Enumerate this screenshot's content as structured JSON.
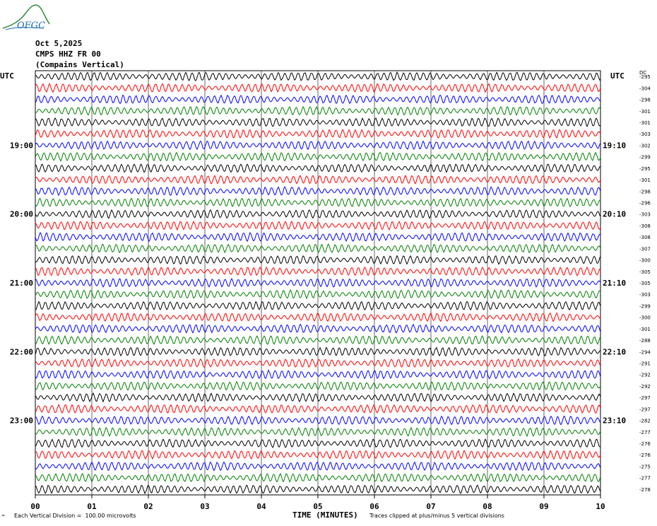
{
  "logo": {
    "text": "OFGC",
    "icon": "ofgc-logo-icon"
  },
  "header": {
    "date": "Oct 5,2025",
    "station": "CMPS HHZ FR 00",
    "location": "(Compains Vertical)"
  },
  "axis_labels": {
    "left_utc": "UTC",
    "right_utc": "UTC",
    "dc": "DC"
  },
  "footer": {
    "scale_note": "Each Vertical Division =  100.00 microvolts",
    "clip_note": "Traces clipped at plus/minus 5 vertical divisions"
  },
  "chart_data": {
    "type": "line",
    "title": "CMPS HHZ FR 00",
    "xlabel": "TIME (MINUTES)",
    "ylabel": "UTC",
    "xlim": [
      0,
      10
    ],
    "x_ticks": [
      "00",
      "01",
      "02",
      "03",
      "04",
      "05",
      "06",
      "07",
      "08",
      "09",
      "10"
    ],
    "trace_colors": [
      "#000000",
      "#ff0000",
      "#0000ff",
      "#008000"
    ],
    "left_hour_labels": [
      "19:00",
      "20:00",
      "21:00",
      "22:00",
      "23:00"
    ],
    "right_hour_labels": [
      "19:10",
      "20:10",
      "21:10",
      "22:10",
      "23:10"
    ],
    "label_row_indices": [
      6,
      12,
      18,
      24,
      30
    ],
    "dc_offsets": [
      -295,
      -304,
      -298,
      -301,
      -301,
      -303,
      -302,
      -299,
      -295,
      -301,
      -298,
      -296,
      -303,
      -308,
      -308,
      -307,
      -300,
      -305,
      -305,
      -303,
      -299,
      -300,
      -301,
      -288,
      -294,
      -291,
      -292,
      -292,
      -297,
      -297,
      -282,
      -277,
      -276,
      -276,
      -275,
      -277,
      -278
    ],
    "trace_count": 37,
    "grid": true
  }
}
